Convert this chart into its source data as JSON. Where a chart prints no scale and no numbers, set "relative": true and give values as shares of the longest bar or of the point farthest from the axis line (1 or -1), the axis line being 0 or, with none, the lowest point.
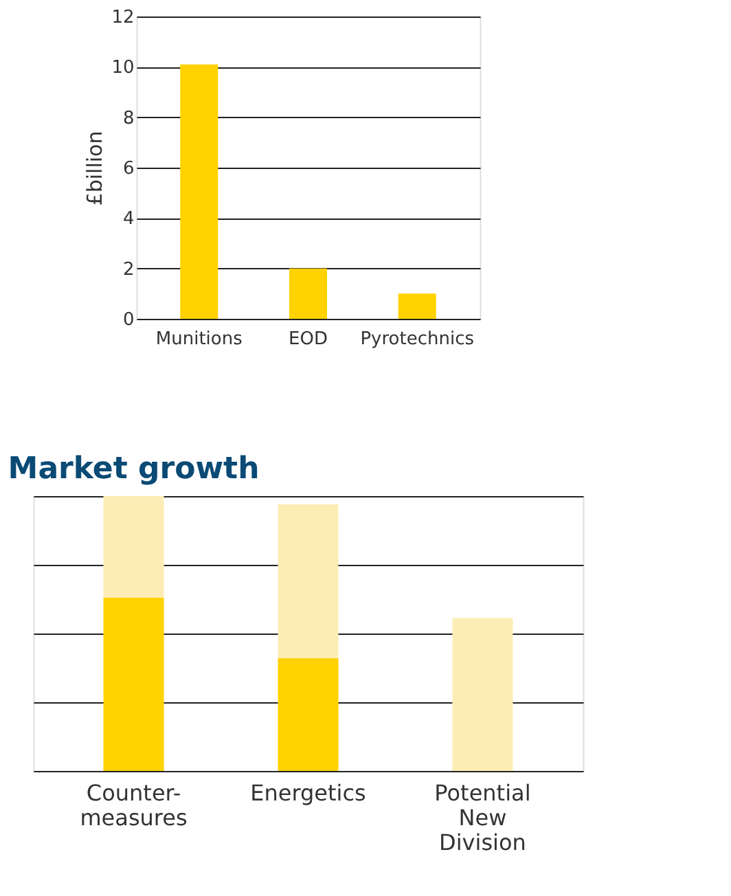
{
  "chart_data": [
    {
      "type": "bar",
      "categories": [
        "Munitions",
        "EOD",
        "Pyrotechnics"
      ],
      "values": [
        10.1,
        2,
        1
      ],
      "color": "#ffd200",
      "ylabel": "£billion",
      "ylim": [
        0,
        12
      ],
      "yticks": [
        0,
        2,
        4,
        6,
        8,
        10,
        12
      ],
      "grid": "y"
    },
    {
      "type": "bar",
      "categories": [
        "Counter-measures",
        "Energetics",
        "Potential New Division"
      ],
      "relative": true,
      "stacked": true,
      "grid": "y",
      "series": [
        {
          "color": "#ffd200",
          "values": [
            0.63,
            0.41,
            0
          ]
        },
        {
          "color": "#fdedb5",
          "values": [
            0.37,
            0.56,
            0.556
          ]
        }
      ],
      "annotations": [
        "Market growth"
      ]
    }
  ]
}
